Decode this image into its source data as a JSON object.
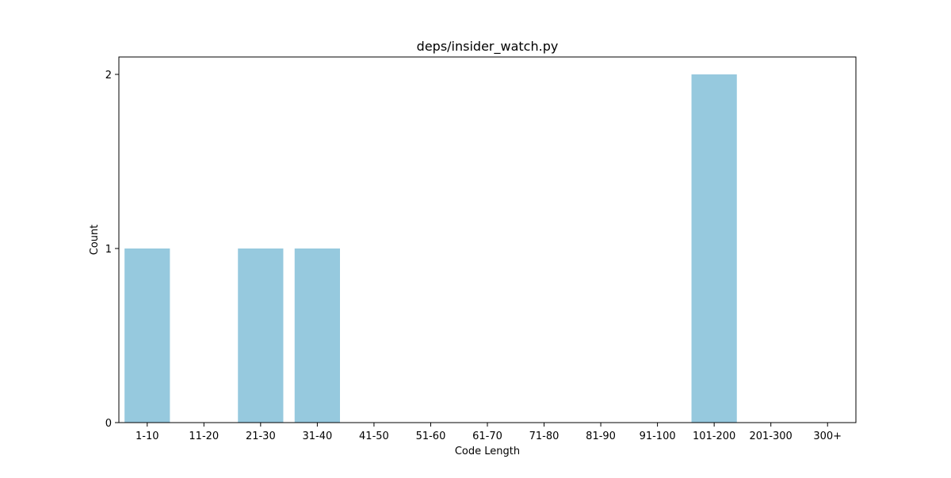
{
  "chart_data": {
    "type": "bar",
    "title": "deps/insider_watch.py",
    "xlabel": "Code Length",
    "ylabel": "Count",
    "categories": [
      "1-10",
      "11-20",
      "21-30",
      "31-40",
      "41-50",
      "51-60",
      "61-70",
      "71-80",
      "81-90",
      "91-100",
      "101-200",
      "201-300",
      "300+"
    ],
    "values": [
      1,
      0,
      1,
      1,
      0,
      0,
      0,
      0,
      0,
      0,
      2,
      0,
      0
    ],
    "yticks": [
      "0",
      "1",
      "2"
    ],
    "ylim": [
      0,
      2.1
    ],
    "grid": false,
    "bar_color": "#96c9de",
    "legend": "none"
  }
}
